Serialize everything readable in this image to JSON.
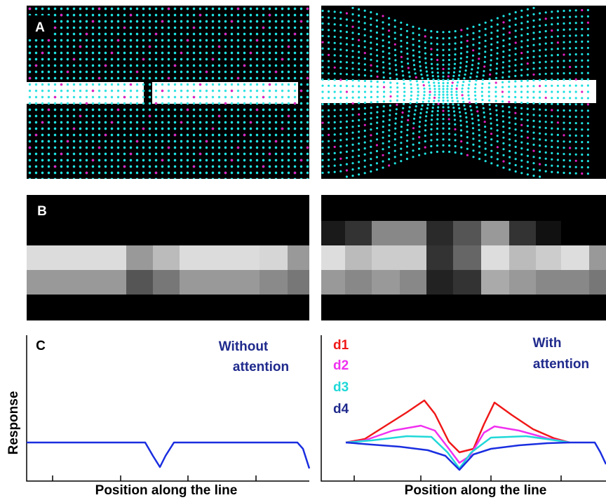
{
  "panel_a": {
    "label": "A"
  },
  "panel_b": {
    "label": "B"
  },
  "panel_c": {
    "label": "C",
    "y_label": "Response",
    "left": {
      "title": [
        "Without",
        "attention"
      ],
      "x_label": "Position along the line"
    },
    "right": {
      "title": [
        "With",
        "attention"
      ],
      "x_label": "Position along the line",
      "legend": [
        "d1",
        "d2",
        "d3",
        "d4"
      ]
    }
  }
}
